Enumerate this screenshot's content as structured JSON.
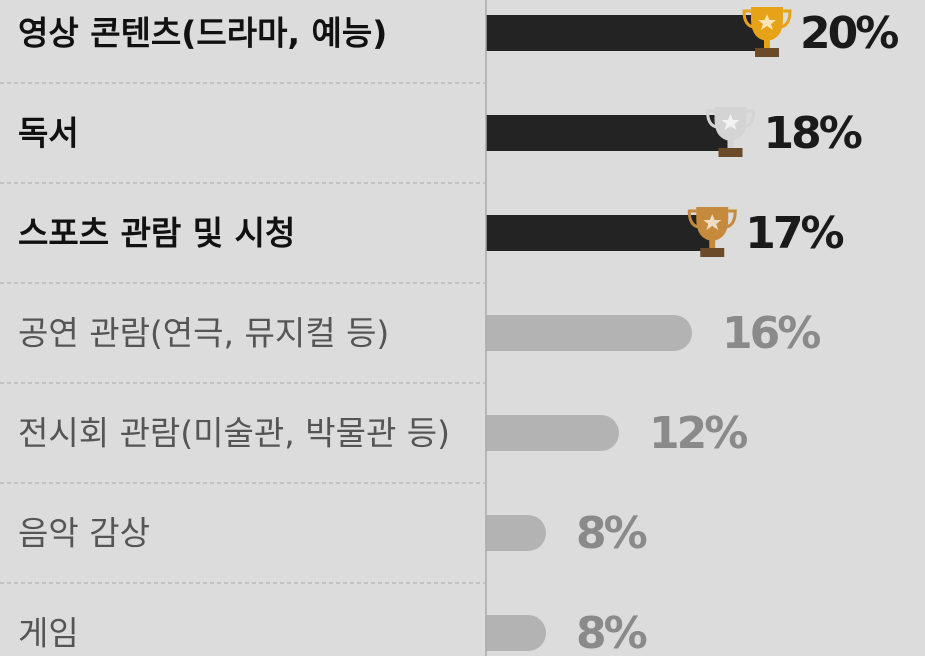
{
  "chart_data": {
    "type": "bar",
    "orientation": "horizontal",
    "categories": [
      "영상 콘텐츠(드라마, 예능)",
      "독서",
      "스포츠 관람 및 시청",
      "공연 관람(연극, 뮤지컬 등)",
      "전시회 관람(미술관, 박물관 등)",
      "음악 감상",
      "게임"
    ],
    "values": [
      20,
      18,
      17,
      16,
      12,
      8,
      8
    ],
    "value_labels": [
      "20%",
      "18%",
      "17%",
      "16%",
      "12%",
      "8%",
      "8%"
    ],
    "colors": [
      "#232323",
      "#232323",
      "#232323",
      "#b3b3b3",
      "#b3b3b3",
      "#b3b3b3",
      "#b3b3b3"
    ],
    "label_colors": [
      "#111111",
      "#111111",
      "#111111",
      "#555555",
      "#555555",
      "#555555",
      "#555555"
    ]
  }
}
